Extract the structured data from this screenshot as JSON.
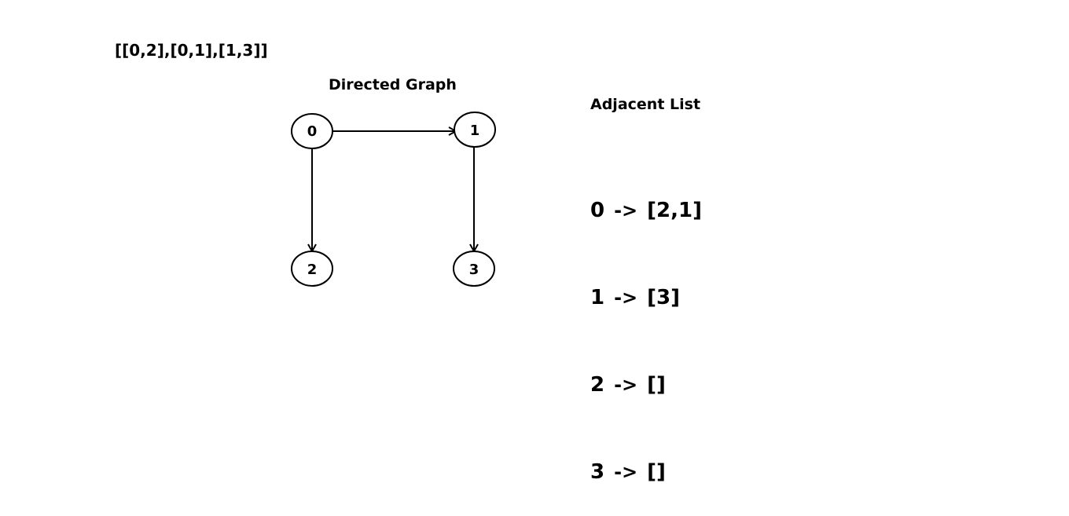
{
  "edge_list_text": "[[0,2],[0,1],[1,3]]",
  "graph": {
    "title": "Directed Graph",
    "nodes": [
      {
        "id": "0",
        "label": "0"
      },
      {
        "id": "1",
        "label": "1"
      },
      {
        "id": "2",
        "label": "2"
      },
      {
        "id": "3",
        "label": "3"
      }
    ],
    "edges": [
      {
        "from": "0",
        "to": "1"
      },
      {
        "from": "0",
        "to": "2"
      },
      {
        "from": "1",
        "to": "3"
      }
    ]
  },
  "adjacency": {
    "title": "Adjacent List",
    "rows": [
      {
        "key": "0",
        "arrow": "->",
        "value": "[2,1]"
      },
      {
        "key": "1",
        "arrow": "->",
        "value": "[3]"
      },
      {
        "key": "2",
        "arrow": "->",
        "value": "[]"
      },
      {
        "key": "3",
        "arrow": "->",
        "value": "[]"
      }
    ]
  }
}
